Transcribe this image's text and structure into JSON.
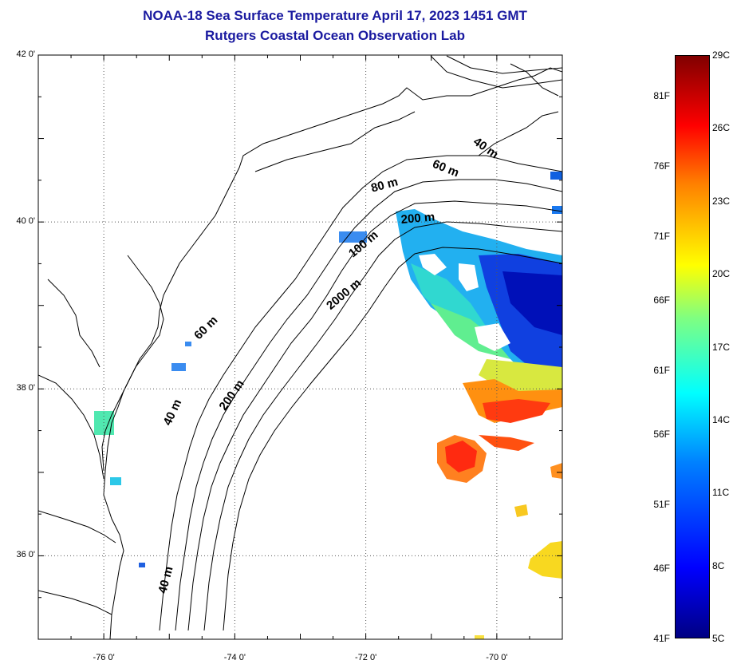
{
  "title": {
    "line1": "NOAA-18 Sea Surface Temperature April 17, 2023 1451 GMT",
    "line2": "Rutgers Coastal Ocean Observation Lab"
  },
  "map": {
    "lat_range": [
      35,
      42
    ],
    "lon_range": [
      -77,
      -69
    ],
    "lat_ticks": [
      {
        "value": 42,
        "label": "42 0'"
      },
      {
        "value": 40,
        "label": "40 0'"
      },
      {
        "value": 38,
        "label": "38 0'"
      },
      {
        "value": 36,
        "label": "36 0'"
      }
    ],
    "lon_ticks": [
      {
        "value": -76,
        "label": "-76 0'"
      },
      {
        "value": -74,
        "label": "-74 0'"
      },
      {
        "value": -72,
        "label": "-72 0'"
      },
      {
        "value": -70,
        "label": "-70 0'"
      }
    ],
    "grid": "dotted",
    "contour_labels": [
      {
        "text": "40 m",
        "lon": -70.2,
        "lat": 40.85,
        "angle": 35
      },
      {
        "text": "60 m",
        "lon": -70.8,
        "lat": 40.6,
        "angle": 22
      },
      {
        "text": "80 m",
        "lon": -71.7,
        "lat": 40.4,
        "angle": -15
      },
      {
        "text": "200 m",
        "lon": -71.2,
        "lat": 40.0,
        "angle": -5
      },
      {
        "text": "100 m",
        "lon": -72.0,
        "lat": 39.7,
        "angle": -40
      },
      {
        "text": "2000 m",
        "lon": -72.3,
        "lat": 39.1,
        "angle": -40
      },
      {
        "text": "60 m",
        "lon": -74.4,
        "lat": 38.7,
        "angle": -45
      },
      {
        "text": "200 m",
        "lon": -74.0,
        "lat": 37.9,
        "angle": -55
      },
      {
        "text": "40 m",
        "lon": -74.9,
        "lat": 37.7,
        "angle": -65
      },
      {
        "text": "40 m",
        "lon": -75.0,
        "lat": 35.7,
        "angle": -75
      }
    ]
  },
  "colorbar": {
    "fahrenheit_labels": [
      {
        "label": "81F",
        "frac": 0.93
      },
      {
        "label": "76F",
        "frac": 0.81
      },
      {
        "label": "71F",
        "frac": 0.69
      },
      {
        "label": "66F",
        "frac": 0.58
      },
      {
        "label": "61F",
        "frac": 0.46
      },
      {
        "label": "56F",
        "frac": 0.35
      },
      {
        "label": "51F",
        "frac": 0.23
      },
      {
        "label": "46F",
        "frac": 0.12
      },
      {
        "label": "41F",
        "frac": 0.0
      }
    ],
    "celsius_labels": [
      {
        "label": "29C",
        "frac": 1.0
      },
      {
        "label": "26C",
        "frac": 0.875
      },
      {
        "label": "23C",
        "frac": 0.75
      },
      {
        "label": "20C",
        "frac": 0.625
      },
      {
        "label": "17C",
        "frac": 0.5
      },
      {
        "label": "14C",
        "frac": 0.375
      },
      {
        "label": "11C",
        "frac": 0.25
      },
      {
        "label": "8C",
        "frac": 0.125
      },
      {
        "label": "5C",
        "frac": 0.0
      }
    ]
  }
}
